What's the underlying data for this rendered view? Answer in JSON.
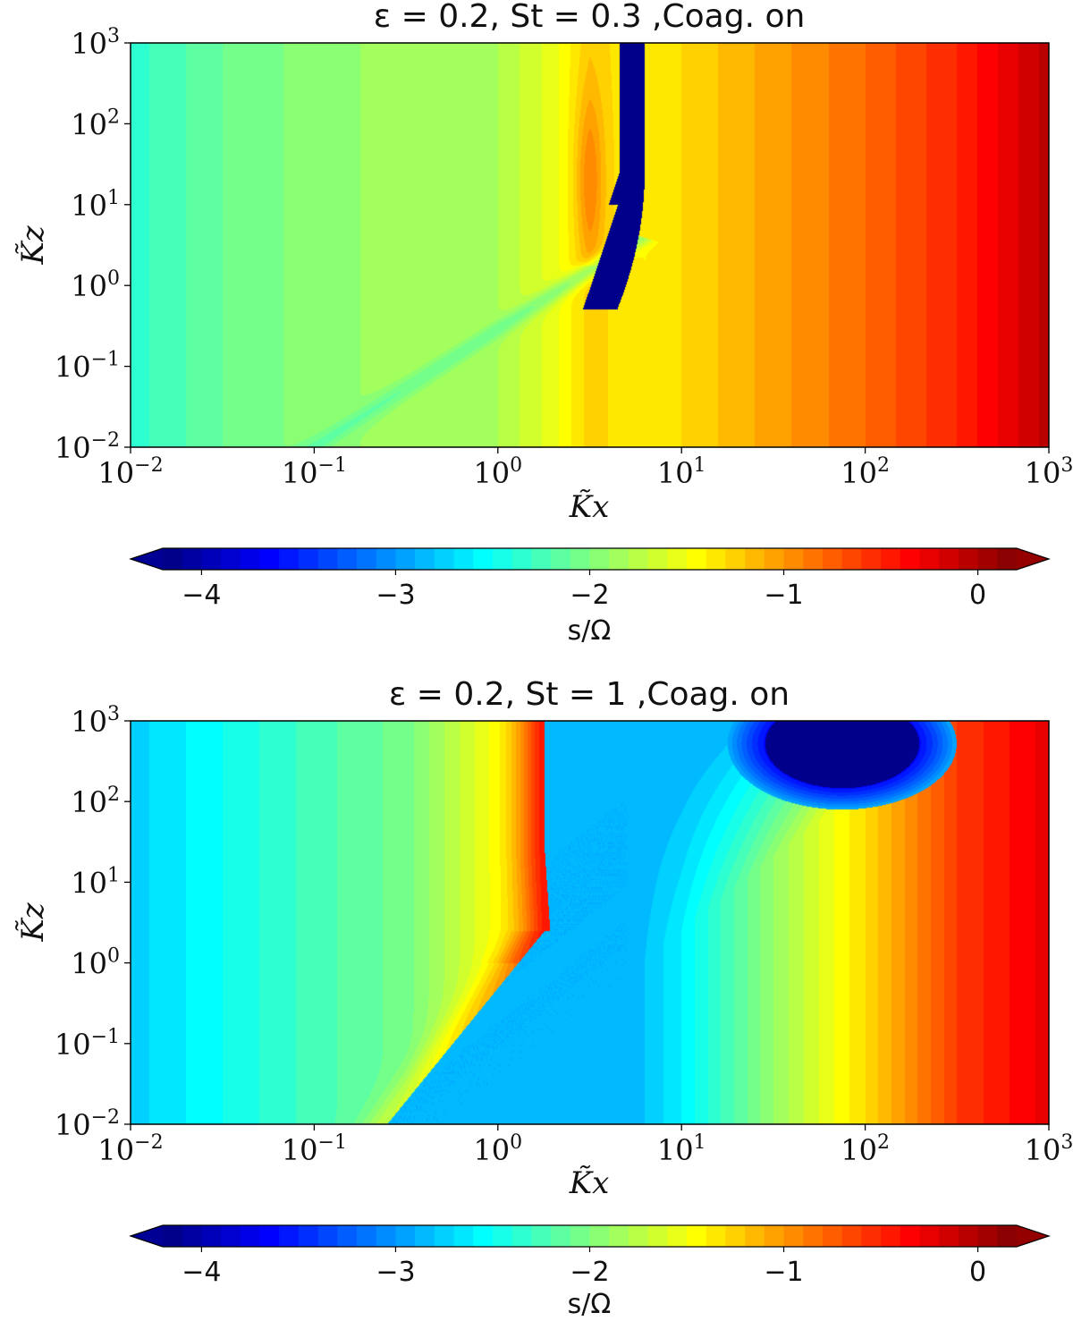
{
  "chart_data": [
    {
      "type": "heatmap",
      "title": "ε = 0.2, St = 0.3 ,Coag. on",
      "xlabel": "K̃x",
      "ylabel": "K̃z",
      "xscale": "log",
      "yscale": "log",
      "xlim": [
        0.01,
        1000
      ],
      "ylim": [
        0.01,
        1000
      ],
      "xticks": [
        {
          "base": "10",
          "exp": "−2",
          "value": 0.01
        },
        {
          "base": "10",
          "exp": "−1",
          "value": 0.1
        },
        {
          "base": "10",
          "exp": "0",
          "value": 1
        },
        {
          "base": "10",
          "exp": "1",
          "value": 10
        },
        {
          "base": "10",
          "exp": "2",
          "value": 100
        },
        {
          "base": "10",
          "exp": "3",
          "value": 1000
        }
      ],
      "yticks": [
        {
          "base": "10",
          "exp": "−2",
          "value": 0.01
        },
        {
          "base": "10",
          "exp": "−1",
          "value": 0.1
        },
        {
          "base": "10",
          "exp": "0",
          "value": 1
        },
        {
          "base": "10",
          "exp": "1",
          "value": 10
        },
        {
          "base": "10",
          "exp": "2",
          "value": 100
        },
        {
          "base": "10",
          "exp": "3",
          "value": 1000
        }
      ],
      "colorbar": {
        "label": "s/Ω",
        "range": [
          -4.2,
          0.2
        ],
        "ticks": [
          {
            "label": "−4",
            "value": -4
          },
          {
            "label": "−3",
            "value": -3
          },
          {
            "label": "−2",
            "value": -2
          },
          {
            "label": "−1",
            "value": -1
          },
          {
            "label": "0",
            "value": 0
          }
        ],
        "colormap": "jet",
        "extend": "both"
      },
      "field_description": {
        "background_value_vs_log10_kx": [
          [
            -2,
            -2.35
          ],
          [
            -1.5,
            -2.1
          ],
          [
            -1,
            -1.95
          ],
          [
            -0.5,
            -1.85
          ],
          [
            0,
            -1.8
          ],
          [
            0.3,
            -1.55
          ],
          [
            0.5,
            -1.25
          ],
          [
            0.8,
            -1.4
          ],
          [
            1,
            -1.3
          ],
          [
            1.5,
            -1.05
          ],
          [
            2,
            -0.8
          ],
          [
            2.5,
            -0.5
          ],
          [
            3,
            -0.05
          ]
        ],
        "dark_band": {
          "value": -4.2,
          "kx_min": 4.6,
          "kx_max": 6.3,
          "kz_from": 0.5
        },
        "diagonal_ridge": {
          "value": -2.3,
          "from": [
            0.1,
            0.01
          ],
          "to": [
            5,
            3
          ]
        }
      }
    },
    {
      "type": "heatmap",
      "title": "ε = 0.2, St = 1 ,Coag. on",
      "xlabel": "K̃x",
      "ylabel": "K̃z",
      "xscale": "log",
      "yscale": "log",
      "xlim": [
        0.01,
        1000
      ],
      "ylim": [
        0.01,
        1000
      ],
      "xticks": [
        {
          "base": "10",
          "exp": "−2",
          "value": 0.01
        },
        {
          "base": "10",
          "exp": "−1",
          "value": 0.1
        },
        {
          "base": "10",
          "exp": "0",
          "value": 1
        },
        {
          "base": "10",
          "exp": "1",
          "value": 10
        },
        {
          "base": "10",
          "exp": "2",
          "value": 100
        },
        {
          "base": "10",
          "exp": "3",
          "value": 1000
        }
      ],
      "yticks": [
        {
          "base": "10",
          "exp": "−2",
          "value": 0.01
        },
        {
          "base": "10",
          "exp": "−1",
          "value": 0.1
        },
        {
          "base": "10",
          "exp": "0",
          "value": 1
        },
        {
          "base": "10",
          "exp": "1",
          "value": 10
        },
        {
          "base": "10",
          "exp": "2",
          "value": 100
        },
        {
          "base": "10",
          "exp": "3",
          "value": 1000
        }
      ],
      "colorbar": {
        "label": "s/Ω",
        "range": [
          -4.2,
          0.2
        ],
        "ticks": [
          {
            "label": "−4",
            "value": -4
          },
          {
            "label": "−3",
            "value": -3
          },
          {
            "label": "−2",
            "value": -2
          },
          {
            "label": "−1",
            "value": -1
          },
          {
            "label": "0",
            "value": 0
          }
        ],
        "colormap": "jet",
        "extend": "both"
      },
      "field_description": {
        "left_background_vs_log10_kx": [
          [
            -2,
            -2.75
          ],
          [
            -1.5,
            -2.5
          ],
          [
            -1,
            -2.25
          ],
          [
            -0.5,
            -2.05
          ],
          [
            0,
            -1.45
          ],
          [
            0.25,
            -0.95
          ]
        ],
        "plateau_value": -2.9,
        "right_background_vs_log10_kx": [
          [
            0.7,
            -2.9
          ],
          [
            1,
            -2.6
          ],
          [
            1.5,
            -1.9
          ],
          [
            2,
            -1.3
          ],
          [
            2.5,
            -0.6
          ],
          [
            3,
            -0.25
          ]
        ],
        "dark_blob": {
          "value": -4.2,
          "center": [
            75,
            520
          ]
        },
        "boundary": {
          "corner": [
            1.8,
            2.5
          ],
          "to": [
            0.25,
            0.01
          ]
        }
      }
    }
  ]
}
